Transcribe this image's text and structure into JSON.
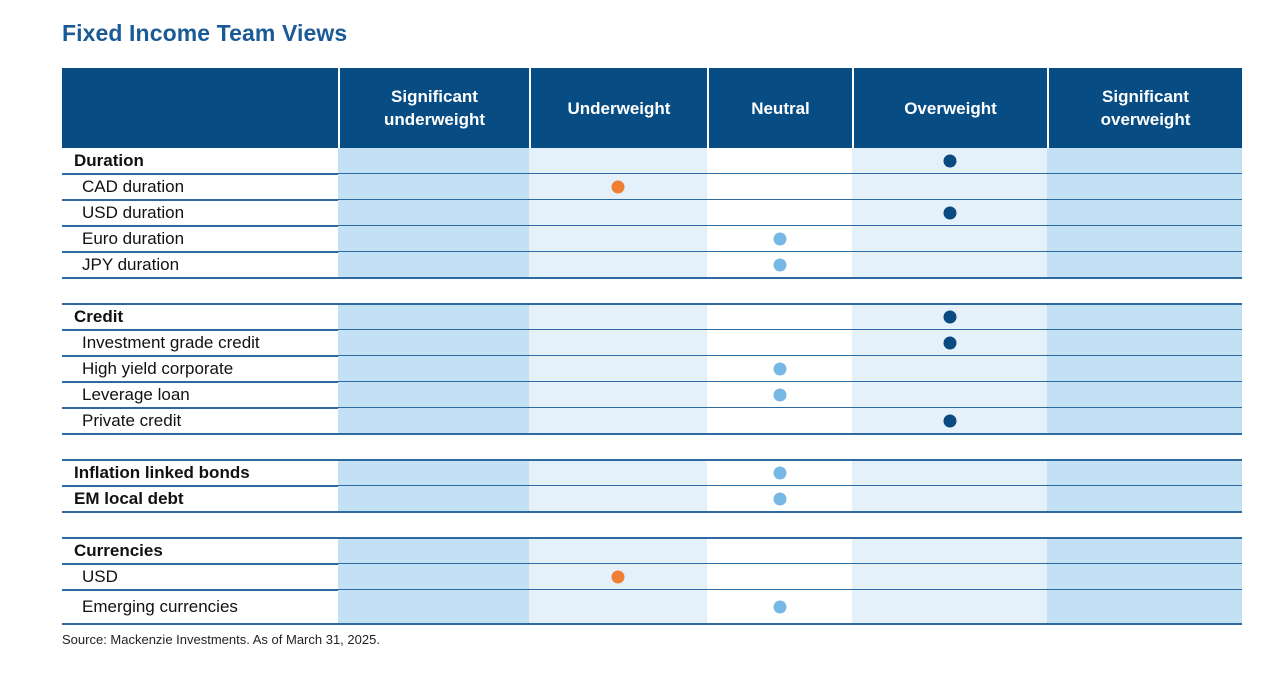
{
  "title": "Fixed Income Team Views",
  "source": "Source: Mackenzie Investments. As of March 31, 2025.",
  "colors": {
    "header_bg": "#084c84",
    "col_dark": "#c4e0f4",
    "col_light": "#e4f1fb",
    "col_white": "#ffffff",
    "dot_dark_blue": "#0a4a80",
    "dot_light_blue": "#78b8e4",
    "dot_orange": "#f07f34"
  },
  "chart_data": {
    "type": "table",
    "columns": [
      "",
      "Significant underweight",
      "Underweight",
      "Neutral",
      "Overweight",
      "Significant overweight"
    ],
    "column_header_lines": [
      [],
      [
        "Significant",
        "underweight"
      ],
      [
        "Underweight"
      ],
      [
        "Neutral"
      ],
      [
        "Overweight"
      ],
      [
        "Significant",
        "overweight"
      ]
    ],
    "groups": [
      {
        "rows": [
          {
            "label": "Duration",
            "kind": "group",
            "view": "Overweight",
            "dot": "dark-blue"
          },
          {
            "label": "CAD duration",
            "kind": "sub",
            "view": "Underweight",
            "dot": "orange"
          },
          {
            "label": "USD duration",
            "kind": "sub",
            "view": "Overweight",
            "dot": "dark-blue"
          },
          {
            "label": "Euro duration",
            "kind": "sub",
            "view": "Neutral",
            "dot": "light-blue"
          },
          {
            "label": "JPY duration",
            "kind": "sub",
            "view": "Neutral",
            "dot": "light-blue"
          }
        ]
      },
      {
        "rows": [
          {
            "label": "Credit",
            "kind": "group",
            "view": "Overweight",
            "dot": "dark-blue"
          },
          {
            "label": "Investment grade credit",
            "kind": "sub",
            "view": "Overweight",
            "dot": "dark-blue"
          },
          {
            "label": "High yield corporate",
            "kind": "sub",
            "view": "Neutral",
            "dot": "light-blue"
          },
          {
            "label": "Leverage loan",
            "kind": "sub",
            "view": "Neutral",
            "dot": "light-blue"
          },
          {
            "label": "Private credit",
            "kind": "sub",
            "view": "Overweight",
            "dot": "dark-blue"
          }
        ]
      },
      {
        "rows": [
          {
            "label": "Inflation linked bonds",
            "kind": "group",
            "view": "Neutral",
            "dot": "light-blue"
          },
          {
            "label": "EM local debt",
            "kind": "group",
            "view": "Neutral",
            "dot": "light-blue"
          }
        ]
      },
      {
        "rows": [
          {
            "label": "Currencies",
            "kind": "group",
            "view": null,
            "dot": null
          },
          {
            "label": "USD",
            "kind": "sub",
            "view": "Underweight",
            "dot": "orange"
          },
          {
            "label": "Emerging currencies",
            "kind": "sub",
            "view": "Neutral",
            "dot": "light-blue"
          }
        ]
      }
    ]
  }
}
